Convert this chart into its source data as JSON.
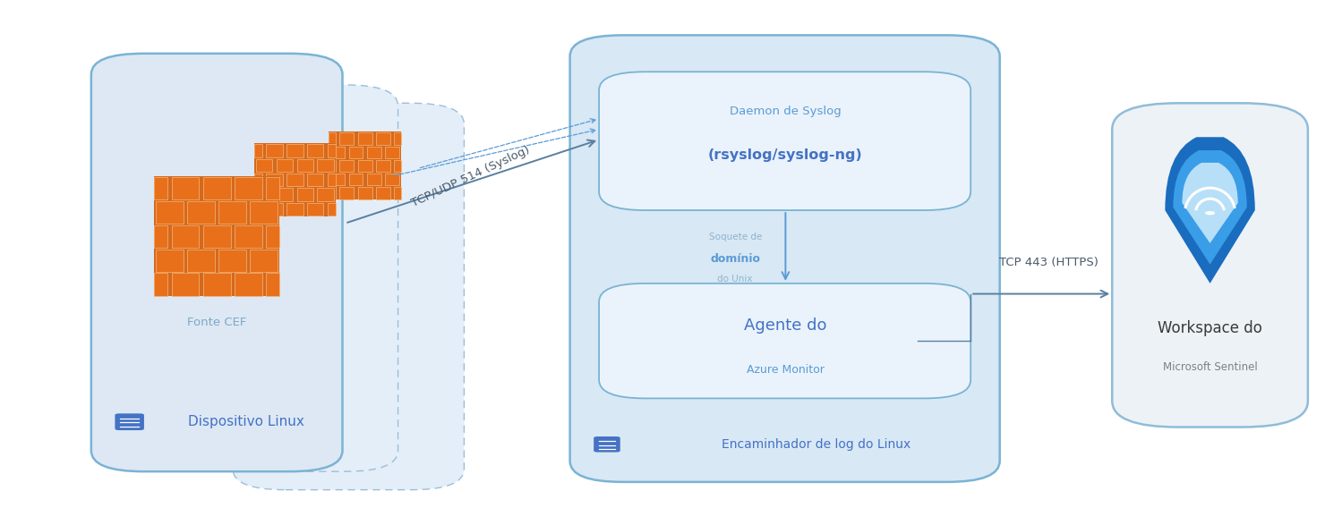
{
  "bg_color": "#ffffff",
  "light_blue_fill": "#dde8f4",
  "box_blue_fill": "#e4eef8",
  "forwarder_fill": "#d8e8f5",
  "inner_box_fill": "#eaf3fb",
  "border_blue": "#7ab3d4",
  "dashed_border": "#99bfd8",
  "arrow_blue": "#5b9bd5",
  "arrow_dark": "#5a7fa0",
  "text_dark_blue": "#4472c4",
  "text_mid_blue": "#5b9bd5",
  "text_gray_blue": "#7fa8c8",
  "text_small_gray": "#90b4cc",
  "server_icon_blue": "#4472c4",
  "sentinel_bg": "#edf2f7",
  "sentinel_border": "#90bcd8",
  "tcp_udp_label": "TCP/UDP 514 (Syslog)",
  "tcp_https_label": "TCP 443 (HTTPS)",
  "syslog_daemon_line1": "Daemon de Syslog",
  "syslog_daemon_line2": "(rsyslog/syslog-ng)",
  "agent_line1": "Agente do",
  "agent_line2": "Azure Monitor",
  "domain_socket_line1": "Soquete de",
  "domain_socket_bold": "domínio",
  "domain_socket_line3": "do Unix",
  "linux_device_label": "Dispositivo Linux",
  "cef_source_label": "Fonte CEF",
  "forwarder_label": "Encaminhador de log do Linux",
  "workspace_line1": "Workspace do",
  "workspace_line2": "Microsoft Sentinel"
}
